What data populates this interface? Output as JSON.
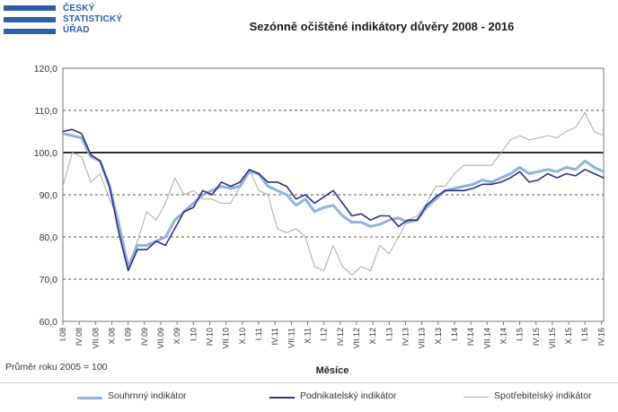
{
  "logo": {
    "lines": [
      "ČESKÝ",
      "STATISTICKÝ",
      "ÚŘAD"
    ]
  },
  "note": "Průměr roku 2005 = 100",
  "chart_data": {
    "type": "line",
    "title": "Sezónně očištěné indikátory důvěry 2008 - 2016",
    "xlabel": "Měsíce",
    "ylabel": "",
    "ylim": [
      60,
      120
    ],
    "yticks": [
      "60,0",
      "70,0",
      "80,0",
      "90,0",
      "100,0",
      "110,0",
      "120,0"
    ],
    "reference_line": 100,
    "grid": true,
    "legend_position": "bottom",
    "x_tick_labels": [
      "I.08",
      "IV.08",
      "VII.08",
      "X.08",
      "I.09",
      "IV.09",
      "VII.09",
      "X.09",
      "I.10",
      "IV.10",
      "VII.10",
      "X.10",
      "I.11",
      "IV.11",
      "VII.11",
      "X.11",
      "I.12",
      "IV.12",
      "VII.12",
      "X.12",
      "I.13",
      "IV.13",
      "VII.13",
      "X.13",
      "I.14",
      "IV.14",
      "VII.14",
      "X.14",
      "I.15",
      "IV.15",
      "VII.15",
      "X.15",
      "I.16",
      "IV.16"
    ],
    "series": [
      {
        "name": "Souhrnný indikátor",
        "color": "#8fb2dc",
        "width": 3,
        "points": [
          [
            0,
            104.5
          ],
          [
            2,
            104
          ],
          [
            4,
            103.5
          ],
          [
            6,
            99
          ],
          [
            8,
            98
          ],
          [
            10,
            92
          ],
          [
            12,
            83
          ],
          [
            14,
            73
          ],
          [
            16,
            78
          ],
          [
            18,
            78
          ],
          [
            20,
            79
          ],
          [
            22,
            80
          ],
          [
            24,
            84
          ],
          [
            26,
            86
          ],
          [
            28,
            88
          ],
          [
            30,
            90
          ],
          [
            32,
            91
          ],
          [
            34,
            92
          ],
          [
            36,
            91.5
          ],
          [
            38,
            92
          ],
          [
            40,
            95.5
          ],
          [
            42,
            95
          ],
          [
            44,
            92
          ],
          [
            46,
            91
          ],
          [
            48,
            90
          ],
          [
            50,
            87.5
          ],
          [
            52,
            89
          ],
          [
            54,
            86
          ],
          [
            56,
            87
          ],
          [
            58,
            87.5
          ],
          [
            60,
            85
          ],
          [
            62,
            83.5
          ],
          [
            64,
            83.5
          ],
          [
            66,
            82.5
          ],
          [
            68,
            83
          ],
          [
            70,
            84
          ],
          [
            72,
            84.5
          ],
          [
            74,
            83.5
          ],
          [
            76,
            84
          ],
          [
            78,
            87
          ],
          [
            80,
            89
          ],
          [
            82,
            91
          ],
          [
            84,
            91.5
          ],
          [
            86,
            92
          ],
          [
            88,
            92.5
          ],
          [
            90,
            93.5
          ],
          [
            92,
            93
          ],
          [
            94,
            94
          ],
          [
            96,
            95
          ],
          [
            98,
            96.5
          ],
          [
            100,
            95
          ],
          [
            102,
            95.5
          ],
          [
            104,
            96
          ],
          [
            106,
            95.5
          ],
          [
            108,
            96.5
          ],
          [
            110,
            96
          ],
          [
            112,
            98
          ],
          [
            114,
            96.5
          ],
          [
            116,
            95.5
          ]
        ]
      },
      {
        "name": "Podnikatelský indikátor",
        "color": "#2e2f82",
        "width": 1.6,
        "points": [
          [
            0,
            105
          ],
          [
            2,
            105.5
          ],
          [
            4,
            104.5
          ],
          [
            6,
            99.5
          ],
          [
            8,
            98
          ],
          [
            10,
            92
          ],
          [
            12,
            81
          ],
          [
            14,
            72
          ],
          [
            16,
            77
          ],
          [
            18,
            77
          ],
          [
            20,
            79
          ],
          [
            22,
            78
          ],
          [
            24,
            82
          ],
          [
            26,
            86
          ],
          [
            28,
            87
          ],
          [
            30,
            91
          ],
          [
            32,
            90
          ],
          [
            34,
            93
          ],
          [
            36,
            92
          ],
          [
            38,
            93
          ],
          [
            40,
            96
          ],
          [
            42,
            95
          ],
          [
            44,
            93
          ],
          [
            46,
            93
          ],
          [
            48,
            92
          ],
          [
            50,
            89
          ],
          [
            52,
            90
          ],
          [
            54,
            88
          ],
          [
            56,
            89.5
          ],
          [
            58,
            91
          ],
          [
            60,
            88
          ],
          [
            62,
            85
          ],
          [
            64,
            85.5
          ],
          [
            66,
            84
          ],
          [
            68,
            85
          ],
          [
            70,
            85
          ],
          [
            72,
            82.5
          ],
          [
            74,
            84
          ],
          [
            76,
            84
          ],
          [
            78,
            87.5
          ],
          [
            80,
            89.5
          ],
          [
            82,
            91
          ],
          [
            84,
            91
          ],
          [
            86,
            91
          ],
          [
            88,
            91.5
          ],
          [
            90,
            92.5
          ],
          [
            92,
            92.5
          ],
          [
            94,
            93
          ],
          [
            96,
            94
          ],
          [
            98,
            95.5
          ],
          [
            100,
            93
          ],
          [
            102,
            93.5
          ],
          [
            104,
            95
          ],
          [
            106,
            94
          ],
          [
            108,
            95
          ],
          [
            110,
            94.5
          ],
          [
            112,
            96
          ],
          [
            114,
            95
          ],
          [
            116,
            94
          ]
        ]
      },
      {
        "name": "Spotřebitelský indikátor",
        "color": "#a8a8a8",
        "width": 1,
        "points": [
          [
            0,
            92
          ],
          [
            2,
            100
          ],
          [
            4,
            99
          ],
          [
            6,
            93
          ],
          [
            8,
            95
          ],
          [
            10,
            89
          ],
          [
            12,
            84
          ],
          [
            14,
            73
          ],
          [
            16,
            79
          ],
          [
            18,
            86
          ],
          [
            20,
            84
          ],
          [
            22,
            88
          ],
          [
            24,
            94
          ],
          [
            26,
            90
          ],
          [
            28,
            91
          ],
          [
            30,
            89
          ],
          [
            32,
            89
          ],
          [
            34,
            88
          ],
          [
            36,
            88
          ],
          [
            38,
            92
          ],
          [
            40,
            96
          ],
          [
            42,
            91
          ],
          [
            44,
            90
          ],
          [
            46,
            82
          ],
          [
            48,
            81
          ],
          [
            50,
            82
          ],
          [
            52,
            80
          ],
          [
            54,
            73
          ],
          [
            56,
            72
          ],
          [
            58,
            78
          ],
          [
            60,
            73
          ],
          [
            62,
            71
          ],
          [
            64,
            73
          ],
          [
            66,
            72
          ],
          [
            68,
            78
          ],
          [
            70,
            76
          ],
          [
            72,
            80
          ],
          [
            74,
            84
          ],
          [
            76,
            85
          ],
          [
            78,
            88
          ],
          [
            80,
            92
          ],
          [
            82,
            92
          ],
          [
            84,
            95
          ],
          [
            86,
            97
          ],
          [
            88,
            97
          ],
          [
            90,
            97
          ],
          [
            92,
            97
          ],
          [
            94,
            100
          ],
          [
            96,
            103
          ],
          [
            98,
            104
          ],
          [
            100,
            103
          ],
          [
            102,
            103.5
          ],
          [
            104,
            104
          ],
          [
            106,
            103.5
          ],
          [
            108,
            105
          ],
          [
            110,
            106
          ],
          [
            112,
            109.5
          ],
          [
            114,
            105
          ],
          [
            116,
            104
          ]
        ]
      }
    ]
  }
}
